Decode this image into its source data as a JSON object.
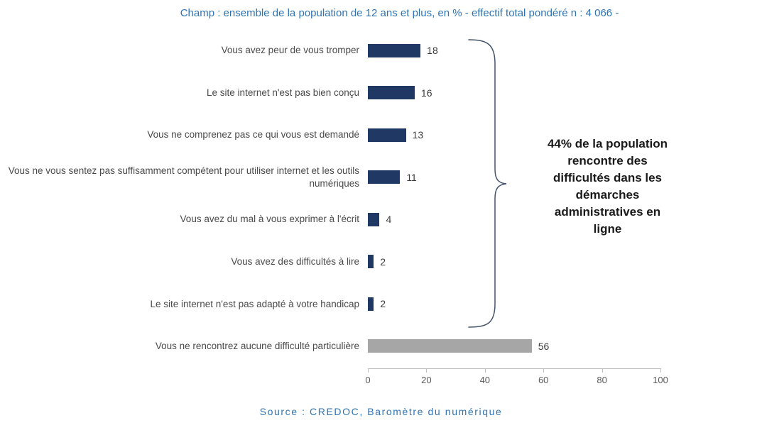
{
  "title": "Champ : ensemble de la population de 12 ans et plus, en % - effectif total pondéré n : 4 066 -",
  "annotation": {
    "full_text": "44% de la population rencontre des difficultés dans les démarches administratives en ligne",
    "lines": [
      "44% de la population",
      "rencontre des",
      "difficultés dans les",
      "démarches",
      "administratives en",
      "ligne"
    ]
  },
  "source": {
    "text": "Source :  CREDOC, Baromètre du numérique"
  },
  "chart_data": {
    "type": "bar",
    "orientation": "horizontal",
    "title": "Champ : ensemble de la population de 12 ans et plus, en % - effectif total pondéré n : 4 066 -",
    "categories": [
      "Vous avez peur de vous tromper",
      "Le site internet n'est pas bien conçu",
      "Vous ne comprenez pas ce qui vous est demandé",
      "Vous ne vous sentez pas suffisamment compétent pour utiliser internet et les outils numériques",
      "Vous avez du mal à vous exprimer à l'écrit",
      "Vous avez des difficultés à lire",
      "Le site internet n'est pas adapté à votre handicap",
      "Vous ne rencontrez aucune difficulté particulière"
    ],
    "values": [
      18,
      16,
      13,
      11,
      4,
      2,
      2,
      56
    ],
    "bar_colors": [
      "#1F3864",
      "#1F3864",
      "#1F3864",
      "#1F3864",
      "#1F3864",
      "#1F3864",
      "#1F3864",
      "#A6A6A6"
    ],
    "xlim": [
      0,
      100
    ],
    "xticks": [
      0,
      20,
      40,
      60,
      80,
      100
    ],
    "xlabel": "",
    "ylabel": "",
    "grid": false,
    "legend": false,
    "value_labels": true,
    "annotation": "44% de la population rencontre des difficultés dans les démarches administratives en ligne"
  },
  "colors": {
    "accent_blue": "#2E74B5",
    "bar_navy": "#1F3864",
    "bar_gray": "#A6A6A6",
    "brace": "#44546A",
    "axis_gray": "#BFBFBF"
  }
}
